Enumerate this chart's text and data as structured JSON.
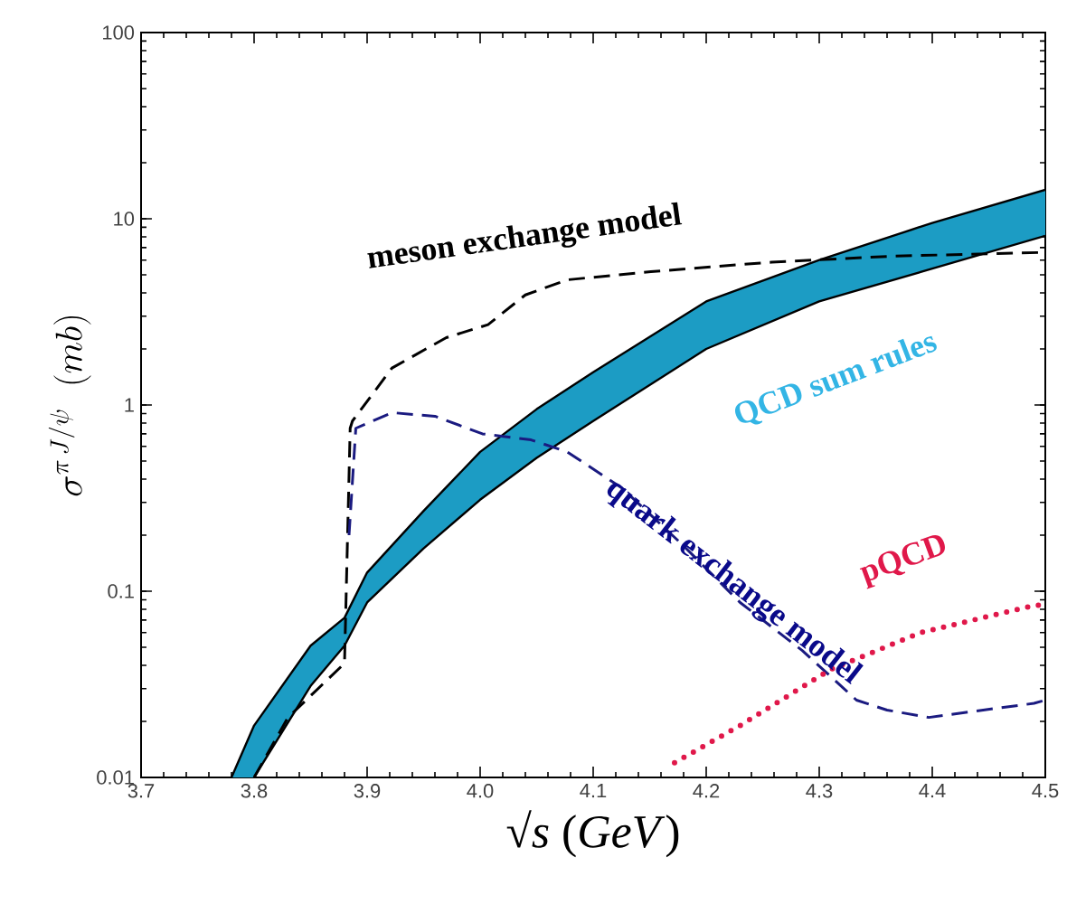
{
  "chart_data": {
    "type": "line",
    "xlabel": "√*s* (*GeV*)",
    "ylabel": "\\sigma^{\\pi\\, J/\\psi}\\;\\;(mb)",
    "log": "y",
    "xlim": [
      3.7,
      4.5
    ],
    "xticks": [
      3.7,
      3.8,
      3.9,
      {
        "value": 4.0,
        "label": "4.0"
      },
      4.1,
      4.2,
      4.3,
      4.4,
      4.5
    ],
    "ylim": [
      0.01,
      100
    ],
    "yticks": [
      0.01,
      0.1,
      1,
      10,
      100
    ],
    "series": [
      {
        "name": "QCD sum rules",
        "type": "area",
        "color": "#1c9cc4",
        "x": [
          3.78,
          3.8,
          3.85,
          3.88,
          3.9,
          3.95,
          4.0,
          4.05,
          4.1,
          4.2,
          4.3,
          4.4,
          4.5
        ],
        "values": [
          0.01,
          0.019,
          0.051,
          0.072,
          0.126,
          0.27,
          0.56,
          0.95,
          1.5,
          3.6,
          6.0,
          9.5,
          14.3
        ]
      },
      {
        "color": "#000000",
        "line_style": "solid",
        "x": [
          3.8,
          3.85,
          3.88,
          3.9,
          3.95,
          4.0,
          4.05,
          4.1,
          4.2,
          4.3,
          4.4,
          4.5
        ],
        "values": [
          0.01,
          0.031,
          0.051,
          0.087,
          0.17,
          0.31,
          0.52,
          0.82,
          2.0,
          3.6,
          5.4,
          8.1
        ]
      },
      {
        "name": "meson exchange model",
        "line_style": "dashed",
        "color": "#000000",
        "x": [
          3.8,
          3.83,
          3.88,
          3.885,
          3.887,
          3.922,
          3.97,
          4.007,
          4.04,
          4.077,
          4.151,
          4.258,
          4.365,
          4.5
        ],
        "values": [
          0.01,
          0.021,
          0.041,
          0.75,
          0.82,
          1.58,
          2.3,
          2.7,
          3.9,
          4.7,
          5.2,
          5.85,
          6.3,
          6.6
        ]
      },
      {
        "name": "quark exchange model",
        "line_style": "dashed",
        "color": "#1a1a80",
        "x": [
          3.884,
          3.89,
          3.922,
          3.96,
          4.002,
          4.045,
          4.077,
          4.125,
          4.178,
          4.23,
          4.285,
          4.333,
          4.36,
          4.397,
          4.445,
          4.49,
          4.5
        ],
        "values": [
          0.2,
          0.75,
          0.91,
          0.87,
          0.7,
          0.65,
          0.56,
          0.36,
          0.18,
          0.087,
          0.048,
          0.026,
          0.023,
          0.021,
          0.023,
          0.025,
          0.026
        ]
      },
      {
        "name": "pQCD",
        "line_style": "dotted",
        "color": "#e0184a",
        "x": [
          4.172,
          4.23,
          4.31,
          4.39,
          4.487,
          4.5
        ],
        "values": [
          0.012,
          0.019,
          0.038,
          0.06,
          0.083,
          0.085
        ]
      }
    ]
  }
}
